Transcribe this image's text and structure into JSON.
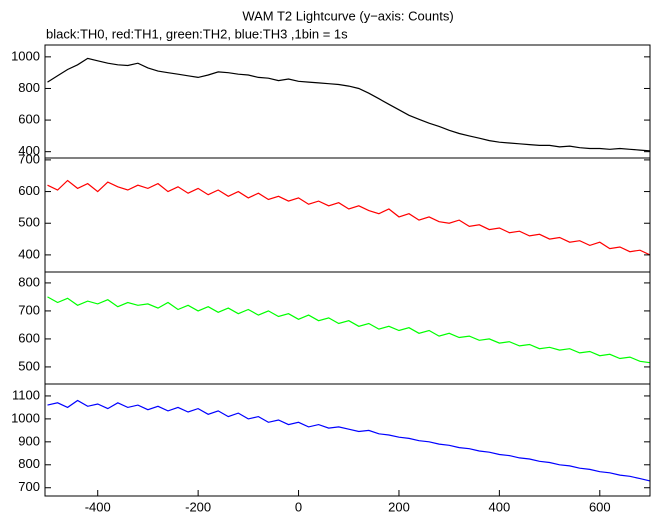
{
  "title": "WAM T2 Lightcurve (y−axis: Counts)",
  "subtitle": "black:TH0, red:TH1, green:TH2, blue:TH3 ,1bin = 1s",
  "chart_data": [
    {
      "type": "line",
      "color": "#000000",
      "x": [
        -500,
        -480,
        -460,
        -440,
        -420,
        -400,
        -380,
        -360,
        -340,
        -320,
        -300,
        -280,
        -260,
        -240,
        -220,
        -200,
        -180,
        -160,
        -140,
        -120,
        -100,
        -80,
        -60,
        -40,
        -20,
        0,
        20,
        40,
        60,
        80,
        100,
        120,
        140,
        160,
        180,
        200,
        220,
        240,
        260,
        280,
        300,
        320,
        340,
        360,
        380,
        400,
        420,
        440,
        460,
        480,
        500,
        520,
        540,
        560,
        580,
        600,
        620,
        640,
        660,
        680,
        700
      ],
      "values": [
        840,
        880,
        920,
        950,
        990,
        975,
        960,
        950,
        945,
        960,
        930,
        910,
        900,
        890,
        880,
        870,
        885,
        905,
        900,
        890,
        885,
        870,
        865,
        850,
        860,
        845,
        840,
        835,
        830,
        825,
        815,
        800,
        770,
        735,
        700,
        665,
        630,
        605,
        580,
        560,
        535,
        515,
        500,
        485,
        470,
        460,
        455,
        450,
        445,
        440,
        440,
        430,
        435,
        425,
        420,
        420,
        415,
        420,
        415,
        410,
        405
      ],
      "xlim": [
        -505,
        700
      ],
      "ylim": [
        360,
        1075
      ],
      "yticks": [
        400,
        600,
        800,
        1000
      ]
    },
    {
      "type": "line",
      "color": "#ff0000",
      "x": [
        -500,
        -480,
        -460,
        -440,
        -420,
        -400,
        -380,
        -360,
        -340,
        -320,
        -300,
        -280,
        -260,
        -240,
        -220,
        -200,
        -180,
        -160,
        -140,
        -120,
        -100,
        -80,
        -60,
        -40,
        -20,
        0,
        20,
        40,
        60,
        80,
        100,
        120,
        140,
        160,
        180,
        200,
        220,
        240,
        260,
        280,
        300,
        320,
        340,
        360,
        380,
        400,
        420,
        440,
        460,
        480,
        500,
        520,
        540,
        560,
        580,
        600,
        620,
        640,
        660,
        680,
        700
      ],
      "values": [
        620,
        605,
        635,
        610,
        625,
        600,
        630,
        615,
        605,
        620,
        610,
        625,
        600,
        615,
        595,
        610,
        590,
        605,
        585,
        600,
        580,
        595,
        575,
        585,
        570,
        580,
        560,
        570,
        555,
        565,
        545,
        555,
        540,
        530,
        545,
        520,
        530,
        510,
        520,
        505,
        500,
        510,
        490,
        495,
        480,
        485,
        470,
        475,
        460,
        465,
        450,
        455,
        440,
        445,
        430,
        440,
        420,
        425,
        410,
        415,
        400
      ],
      "xlim": [
        -505,
        700
      ],
      "ylim": [
        346,
        706
      ],
      "yticks": [
        400,
        500,
        600,
        700
      ]
    },
    {
      "type": "line",
      "color": "#00ff00",
      "x": [
        -500,
        -480,
        -460,
        -440,
        -420,
        -400,
        -380,
        -360,
        -340,
        -320,
        -300,
        -280,
        -260,
        -240,
        -220,
        -200,
        -180,
        -160,
        -140,
        -120,
        -100,
        -80,
        -60,
        -40,
        -20,
        0,
        20,
        40,
        60,
        80,
        100,
        120,
        140,
        160,
        180,
        200,
        220,
        240,
        260,
        280,
        300,
        320,
        340,
        360,
        380,
        400,
        420,
        440,
        460,
        480,
        500,
        520,
        540,
        560,
        580,
        600,
        620,
        640,
        660,
        680,
        700
      ],
      "values": [
        750,
        730,
        745,
        720,
        735,
        725,
        740,
        715,
        730,
        720,
        725,
        710,
        730,
        705,
        720,
        700,
        715,
        695,
        710,
        690,
        705,
        685,
        700,
        680,
        690,
        670,
        685,
        665,
        675,
        655,
        665,
        645,
        655,
        635,
        645,
        630,
        640,
        620,
        630,
        610,
        620,
        605,
        610,
        595,
        600,
        585,
        590,
        575,
        580,
        565,
        570,
        560,
        565,
        550,
        555,
        540,
        545,
        530,
        535,
        520,
        515
      ],
      "xlim": [
        -505,
        700
      ],
      "ylim": [
        439,
        839
      ],
      "yticks": [
        500,
        600,
        700,
        800
      ]
    },
    {
      "type": "line",
      "color": "#0000ff",
      "x": [
        -500,
        -480,
        -460,
        -440,
        -420,
        -400,
        -380,
        -360,
        -340,
        -320,
        -300,
        -280,
        -260,
        -240,
        -220,
        -200,
        -180,
        -160,
        -140,
        -120,
        -100,
        -80,
        -60,
        -40,
        -20,
        0,
        20,
        40,
        60,
        80,
        100,
        120,
        140,
        160,
        180,
        200,
        220,
        240,
        260,
        280,
        300,
        320,
        340,
        360,
        380,
        400,
        420,
        440,
        460,
        480,
        500,
        520,
        540,
        560,
        580,
        600,
        620,
        640,
        660,
        680,
        700
      ],
      "values": [
        1060,
        1070,
        1050,
        1080,
        1055,
        1065,
        1045,
        1070,
        1050,
        1060,
        1040,
        1055,
        1035,
        1050,
        1030,
        1045,
        1020,
        1035,
        1010,
        1025,
        1000,
        1010,
        985,
        995,
        975,
        985,
        965,
        975,
        960,
        965,
        955,
        945,
        950,
        935,
        930,
        920,
        915,
        905,
        900,
        890,
        885,
        875,
        870,
        860,
        855,
        845,
        840,
        830,
        825,
        815,
        810,
        800,
        795,
        785,
        780,
        770,
        765,
        755,
        750,
        740,
        730
      ],
      "xlim": [
        -505,
        700
      ],
      "ylim": [
        664,
        1152
      ],
      "yticks": [
        700,
        800,
        900,
        1000,
        1100
      ],
      "xticks": [
        -400,
        -200,
        0,
        200,
        400,
        600
      ]
    }
  ]
}
